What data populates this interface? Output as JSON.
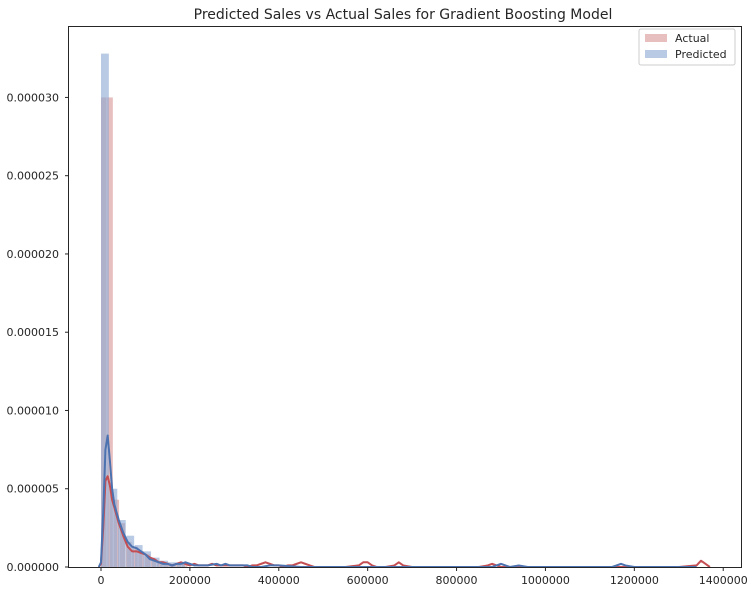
{
  "chart_data": {
    "type": "histogram",
    "title": "Predicted Sales vs Actual Sales for Gradient Boosting Model",
    "xlabel": "",
    "ylabel": "",
    "xlim": [
      -72000,
      1440000
    ],
    "ylim": [
      0,
      3.45e-05
    ],
    "x_ticks": [
      0,
      200000,
      400000,
      600000,
      800000,
      1000000,
      1200000,
      1400000
    ],
    "x_tick_labels": [
      "0",
      "200000",
      "400000",
      "600000",
      "800000",
      "1000000",
      "1200000",
      "1400000"
    ],
    "y_ticks": [
      0,
      5e-06,
      1e-05,
      1.5e-05,
      2e-05,
      2.5e-05,
      3e-05
    ],
    "y_tick_labels": [
      "0.000000",
      "0.000005",
      "0.000010",
      "0.000015",
      "0.000020",
      "0.000025",
      "0.000030"
    ],
    "grid": false,
    "legend_position": "top-right",
    "series": [
      {
        "name": "Actual",
        "kind": "histogram",
        "color": "#d48a8b",
        "opacity": 0.55,
        "bins": [
          {
            "x0": 0,
            "x1": 14000,
            "y": 3e-05
          },
          {
            "x0": 14000,
            "x1": 28000,
            "y": 3e-05
          },
          {
            "x0": 28000,
            "x1": 42000,
            "y": 4.3e-06
          },
          {
            "x0": 42000,
            "x1": 56000,
            "y": 2.8e-06
          },
          {
            "x0": 56000,
            "x1": 70000,
            "y": 1.6e-06
          },
          {
            "x0": 70000,
            "x1": 84000,
            "y": 1.3e-06
          },
          {
            "x0": 84000,
            "x1": 98000,
            "y": 1e-06
          },
          {
            "x0": 98000,
            "x1": 112000,
            "y": 8e-07
          },
          {
            "x0": 112000,
            "x1": 126000,
            "y": 5e-07
          },
          {
            "x0": 126000,
            "x1": 140000,
            "y": 4e-07
          },
          {
            "x0": 140000,
            "x1": 154000,
            "y": 3e-07
          },
          {
            "x0": 154000,
            "x1": 168000,
            "y": 2e-07
          },
          {
            "x0": 168000,
            "x1": 182000,
            "y": 2e-07
          },
          {
            "x0": 182000,
            "x1": 196000,
            "y": 3e-07
          }
        ]
      },
      {
        "name": "Predicted",
        "kind": "histogram",
        "color": "#8aa6d2",
        "opacity": 0.6,
        "bins": [
          {
            "x0": 0,
            "x1": 19000,
            "y": 3.28e-05
          },
          {
            "x0": 19000,
            "x1": 38000,
            "y": 5e-06
          },
          {
            "x0": 38000,
            "x1": 57000,
            "y": 3e-06
          },
          {
            "x0": 57000,
            "x1": 76000,
            "y": 2e-06
          },
          {
            "x0": 76000,
            "x1": 95000,
            "y": 1.4e-06
          },
          {
            "x0": 95000,
            "x1": 114000,
            "y": 1e-06
          },
          {
            "x0": 114000,
            "x1": 133000,
            "y": 6e-07
          },
          {
            "x0": 133000,
            "x1": 152000,
            "y": 4e-07
          },
          {
            "x0": 152000,
            "x1": 171000,
            "y": 3e-07
          },
          {
            "x0": 171000,
            "x1": 190000,
            "y": 2e-07
          }
        ]
      }
    ],
    "kde": [
      {
        "name": "Actual",
        "color": "#c44e52",
        "x": [
          -5000,
          0,
          5000,
          10000,
          15000,
          20000,
          25000,
          30000,
          40000,
          50000,
          60000,
          70000,
          80000,
          90000,
          100000,
          110000,
          120000,
          130000,
          140000,
          150000,
          160000,
          170000,
          180000,
          190000,
          200000,
          210000,
          220000,
          230000,
          240000,
          250000,
          260000,
          270000,
          280000,
          290000,
          300000,
          310000,
          320000,
          330000,
          340000,
          350000,
          360000,
          370000,
          380000,
          390000,
          400000,
          410000,
          420000,
          430000,
          440000,
          450000,
          460000,
          470000,
          480000,
          500000,
          550000,
          580000,
          590000,
          600000,
          610000,
          620000,
          640000,
          660000,
          670000,
          680000,
          700000,
          750000,
          800000,
          850000,
          870000,
          880000,
          890000,
          900000,
          950000,
          1000000,
          1050000,
          1100000,
          1150000,
          1200000,
          1250000,
          1300000,
          1340000,
          1350000,
          1360000,
          1370000
        ],
        "y": [
          0,
          2e-07,
          2.5e-06,
          5.5e-06,
          5.8e-06,
          5.2e-06,
          4.3e-06,
          3.8e-06,
          2.8e-06,
          2e-06,
          1.3e-06,
          1e-06,
          1e-06,
          9e-07,
          8e-07,
          6e-07,
          5e-07,
          3e-07,
          3e-07,
          2e-07,
          1e-07,
          2e-07,
          3e-07,
          2e-07,
          1e-07,
          2e-07,
          1e-07,
          1e-07,
          1e-07,
          2e-07,
          1e-07,
          1e-07,
          1e-07,
          1e-07,
          1e-07,
          1e-07,
          1e-07,
          0,
          1e-07,
          1e-07,
          2e-07,
          3e-07,
          2e-07,
          1e-07,
          1e-07,
          0,
          1e-07,
          1e-07,
          2e-07,
          3e-07,
          2e-07,
          1e-07,
          0,
          0,
          0,
          1e-07,
          3e-07,
          3e-07,
          1e-07,
          0,
          0,
          1e-07,
          3e-07,
          1e-07,
          0,
          0,
          0,
          0,
          1e-07,
          2e-07,
          1e-07,
          0,
          0,
          0,
          0,
          0,
          0,
          0,
          0,
          0,
          1e-07,
          4e-07,
          2e-07,
          0
        ]
      },
      {
        "name": "Predicted",
        "color": "#4c72b0",
        "x": [
          -5000,
          0,
          5000,
          10000,
          15000,
          20000,
          25000,
          30000,
          40000,
          50000,
          60000,
          70000,
          80000,
          90000,
          100000,
          110000,
          120000,
          130000,
          140000,
          150000,
          160000,
          170000,
          180000,
          190000,
          200000,
          210000,
          220000,
          240000,
          260000,
          270000,
          280000,
          290000,
          300000,
          310000,
          320000,
          330000,
          340000,
          360000,
          380000,
          400000,
          450000,
          500000,
          550000,
          600000,
          650000,
          700000,
          750000,
          800000,
          850000,
          880000,
          890000,
          900000,
          910000,
          920000,
          940000,
          960000,
          1000000,
          1050000,
          1100000,
          1150000,
          1160000,
          1170000,
          1180000,
          1200000,
          1250000,
          1300000,
          1340000
        ],
        "y": [
          0,
          3e-07,
          3.5e-06,
          7.5e-06,
          8.4e-06,
          6.8e-06,
          5e-06,
          4e-06,
          3e-06,
          2.2e-06,
          1.6e-06,
          1.3e-06,
          1.2e-06,
          1e-06,
          8e-07,
          5e-07,
          4e-07,
          3e-07,
          2e-07,
          2e-07,
          1e-07,
          2e-07,
          2e-07,
          3e-07,
          2e-07,
          1e-07,
          1e-07,
          1e-07,
          2e-07,
          1e-07,
          2e-07,
          1e-07,
          1e-07,
          1e-07,
          1e-07,
          1e-07,
          0,
          0,
          1e-07,
          1e-07,
          0,
          0,
          0,
          0,
          0,
          0,
          0,
          0,
          0,
          0,
          1e-07,
          2e-07,
          1e-07,
          0,
          1e-07,
          0,
          0,
          0,
          0,
          0,
          1e-07,
          2e-07,
          1e-07,
          0,
          0,
          0,
          0
        ]
      }
    ]
  }
}
